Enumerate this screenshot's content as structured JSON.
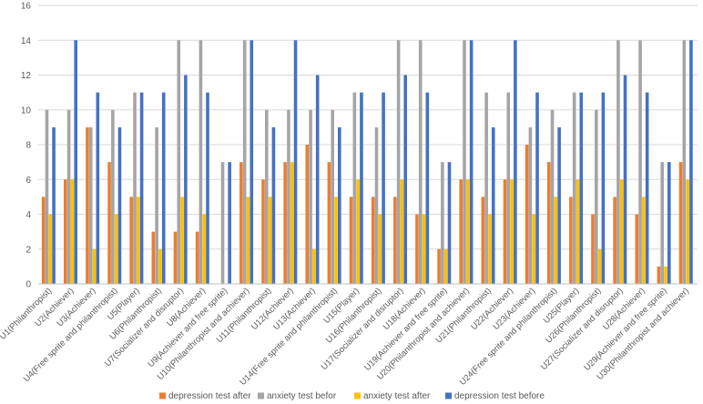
{
  "chart_data": {
    "type": "bar",
    "title": "",
    "xlabel": "",
    "ylabel": "",
    "ylim": [
      0,
      16
    ],
    "yticks": [
      0,
      2,
      4,
      6,
      8,
      10,
      12,
      14,
      16
    ],
    "ytick_labels": [
      "0",
      "2",
      "4",
      "6",
      "8",
      "10",
      "12",
      "14",
      "16"
    ],
    "grid": true,
    "legend_position": "bottom",
    "categories": [
      "U1(Philanthropist)",
      "U2(Achiever)",
      "U3(Achiever)",
      "U4(Free sprite and philanthropist)",
      "U5(Player)",
      "U6(Philanthropist)",
      "U7(Socializer and disruptor)",
      "U8(Achiever)",
      "U9(Achiever and free sprite)",
      "U10(Philanthropist and achiever)",
      "U11(Philanthropist)",
      "U12(Achiever)",
      "U13(Achiever)",
      "U14(Free sprite and philanthropist)",
      "U15(Player)",
      "U16(Philanthropist)",
      "U17(Socializer and disruptor)",
      "U18(Achiever)",
      "U19(Achiever and free sprite)",
      "U20(Philanthropist and achiever)",
      "U21(Philanthropist)",
      "U22(Achiever)",
      "U23(Achiever)",
      "U24(Free sprite and philanthropist)",
      "U25(Player)",
      "U26(Philanthropist)",
      "U27(Socializer and disruptor)",
      "U28(Achiever)",
      "U29(Achiever and free sprite)",
      "U30(Philanthropist and achiever)"
    ],
    "series": [
      {
        "name": "depression test after",
        "color": "#ED7D31",
        "values": [
          5,
          6,
          9,
          7,
          5,
          3,
          3,
          3,
          0,
          7,
          6,
          7,
          8,
          7,
          5,
          5,
          5,
          4,
          2,
          6,
          5,
          6,
          8,
          7,
          5,
          4,
          5,
          4,
          1,
          7
        ]
      },
      {
        "name": "anxiety test befor",
        "color": "#A5A5A5",
        "values": [
          10,
          10,
          9,
          10,
          11,
          9,
          14,
          14,
          7,
          14,
          10,
          10,
          10,
          10,
          11,
          9,
          14,
          14,
          7,
          14,
          11,
          11,
          9,
          10,
          11,
          10,
          14,
          14,
          7,
          14
        ]
      },
      {
        "name": "anxiety test after",
        "color": "#FFC000",
        "values": [
          4,
          6,
          2,
          4,
          5,
          2,
          5,
          4,
          0,
          5,
          5,
          7,
          2,
          5,
          6,
          4,
          6,
          4,
          2,
          6,
          4,
          6,
          4,
          5,
          6,
          2,
          6,
          5,
          1,
          6
        ]
      },
      {
        "name": "depression test before",
        "color": "#4472C4",
        "values": [
          9,
          14,
          11,
          9,
          11,
          11,
          12,
          11,
          7,
          14,
          9,
          14,
          12,
          9,
          11,
          11,
          12,
          11,
          7,
          14,
          9,
          14,
          11,
          9,
          11,
          11,
          12,
          11,
          7,
          14
        ]
      }
    ]
  }
}
